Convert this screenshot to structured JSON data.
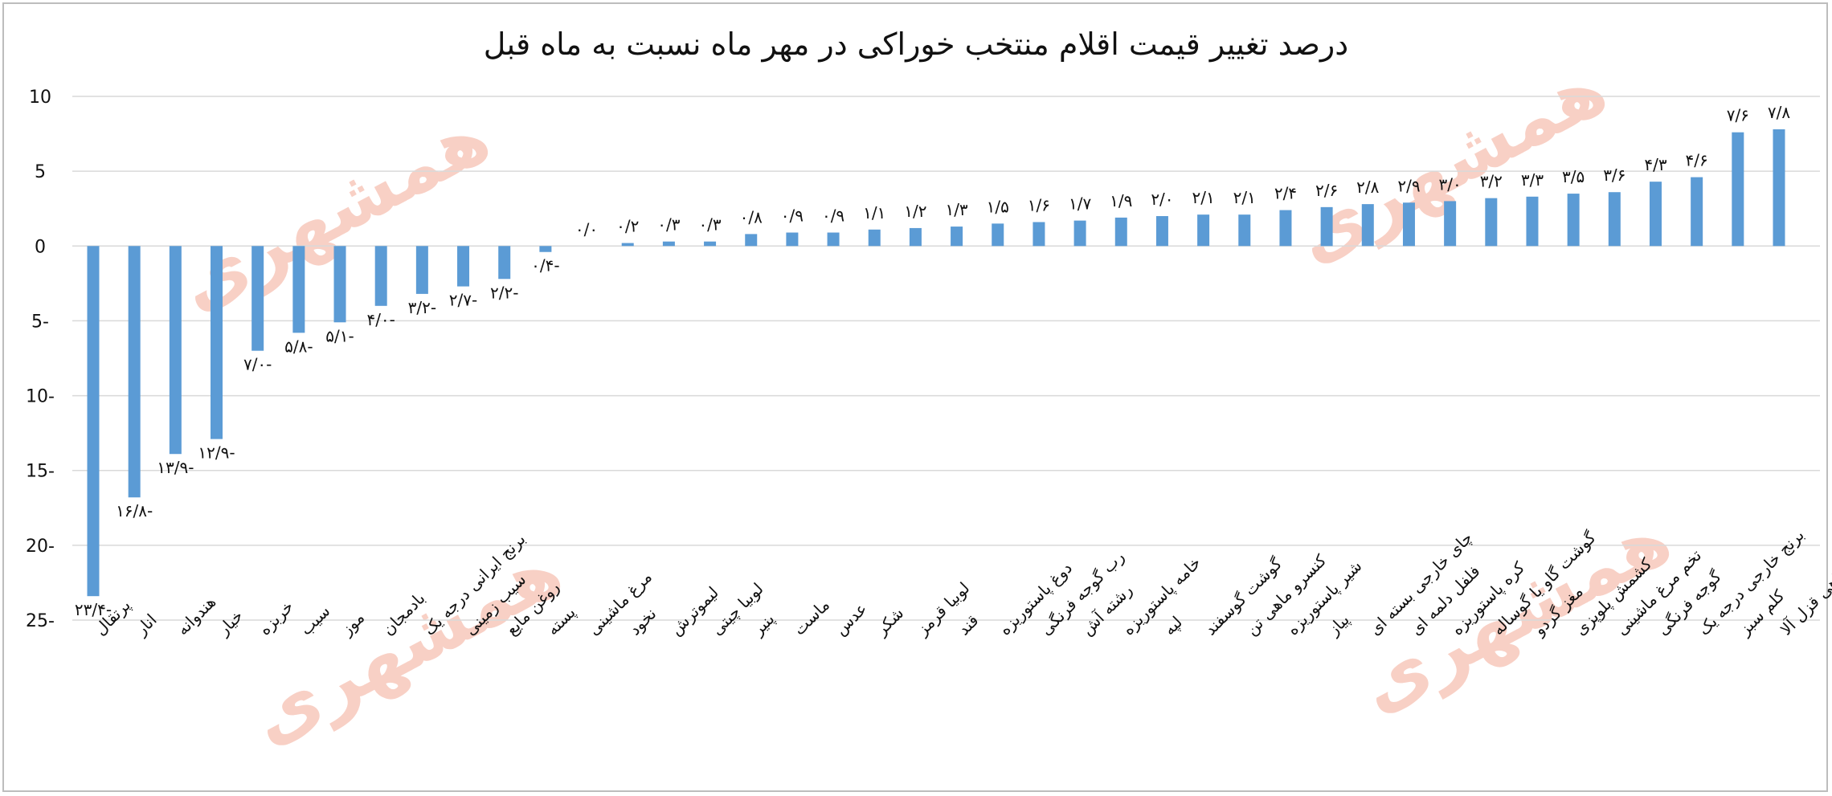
{
  "watermark": "همشهری",
  "colors": {
    "bar": "#5b9bd5",
    "grid": "#d9d9d9",
    "text": "#111111",
    "watermark": "#f7c8bc"
  },
  "chart_data": {
    "type": "bar",
    "title": "درصد تغییر قیمت اقلام منتخب خوراکی در مهر ماه نسبت به ماه قبل",
    "xlabel": "",
    "ylabel": "",
    "ylim": [
      -25,
      10
    ],
    "yticks": [
      10,
      5,
      0,
      -5,
      -10,
      -15,
      -20,
      -25
    ],
    "ytick_labels": [
      "10",
      "5",
      "0",
      "5-",
      "10-",
      "15-",
      "20-",
      "25-"
    ],
    "gridlines": true,
    "categories": [
      "پرتقال",
      "انار",
      "هندوانه",
      "خیار",
      "خربزه",
      "سیب",
      "موز",
      "بادمجان",
      "برنج ایرانی درجه یک",
      "سیب زمینی",
      "روغن مایع",
      "پسته",
      "مرغ ماشینی",
      "نخود",
      "لیموترش",
      "لوبیا چیتی",
      "پنیر",
      "ماست",
      "عدس",
      "شکر",
      "لوبیا قرمز",
      "قند",
      "دوغ پاستوریزه",
      "رب گوجه فرنگی",
      "رشته آش",
      "خامه پاستوریزه",
      "لپه",
      "گوشت گوسفند",
      "کنسرو ماهی تن",
      "شیر پاستوریزه",
      "پیاز",
      "چای خارجی بسته ای",
      "فلفل دلمه ای",
      "کره پاستوریزه",
      "گوشت گاو یا گوساله",
      "مغز گردو",
      "کشمش پلوپزی",
      "تخم مرغ ماشینی",
      "گوجه فرنگی",
      "برنج خارجی درجه یک",
      "کلم سبز",
      "ماهی قزل آلا"
    ],
    "values": [
      -23.4,
      -16.8,
      -13.9,
      -12.9,
      -7.0,
      -5.8,
      -5.1,
      -4.0,
      -3.2,
      -2.7,
      -2.2,
      -0.4,
      0.0,
      0.2,
      0.3,
      0.3,
      0.8,
      0.9,
      0.9,
      1.1,
      1.2,
      1.3,
      1.5,
      1.6,
      1.7,
      1.9,
      2.0,
      2.1,
      2.1,
      2.4,
      2.6,
      2.8,
      2.9,
      3.0,
      3.2,
      3.3,
      3.5,
      3.6,
      4.3,
      4.6,
      7.6,
      7.8
    ],
    "data_labels": [
      "۲۳/۴-",
      "۱۶/۸-",
      "۱۳/۹-",
      "۱۲/۹-",
      "۷/۰-",
      "۵/۸-",
      "۵/۱-",
      "۴/۰-",
      "۳/۲-",
      "۲/۷-",
      "۲/۲-",
      "۰/۴-",
      "۰/۰",
      "۰/۲",
      "۰/۳",
      "۰/۳",
      "۰/۸",
      "۰/۹",
      "۰/۹",
      "۱/۱",
      "۱/۲",
      "۱/۳",
      "۱/۵",
      "۱/۶",
      "۱/۷",
      "۱/۹",
      "۲/۰",
      "۲/۱",
      "۲/۱",
      "۲/۴",
      "۲/۶",
      "۲/۸",
      "۲/۹",
      "۳/۰",
      "۳/۲",
      "۳/۳",
      "۳/۵",
      "۳/۶",
      "۴/۳",
      "۴/۶",
      "۷/۶",
      "۷/۸"
    ]
  }
}
